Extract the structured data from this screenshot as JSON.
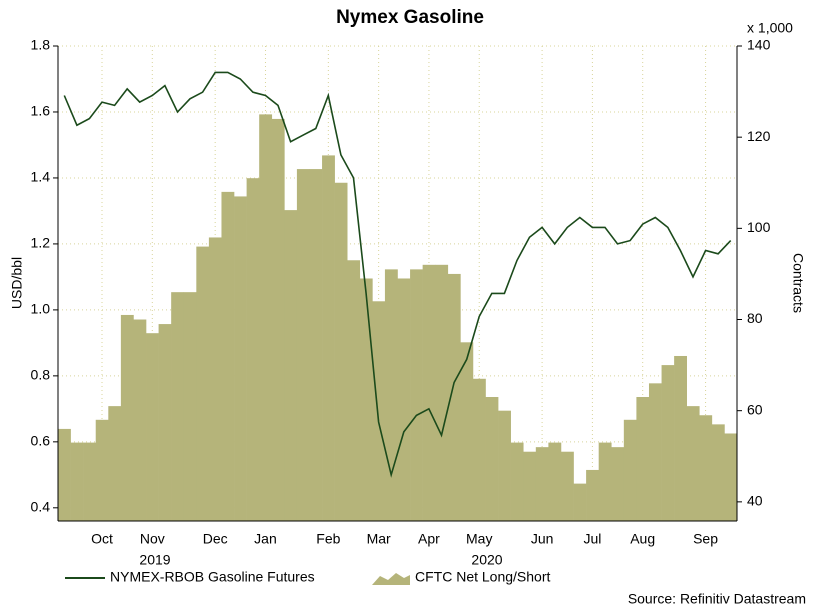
{
  "chart_data": {
    "type": "line-area",
    "title": "Nymex Gasoline",
    "y_label": "USD/bbl",
    "y2_label": "Contracts",
    "y2_unit_label": "x 1,000",
    "x_group_labels": [
      "2019",
      "2020"
    ],
    "source": "Source: Refinitiv Datastream",
    "categories": [
      null,
      null,
      null,
      "Oct",
      null,
      null,
      null,
      "Nov",
      null,
      null,
      null,
      null,
      "Dec",
      null,
      null,
      null,
      "Jan",
      null,
      null,
      null,
      null,
      "Feb",
      null,
      null,
      null,
      "Mar",
      null,
      null,
      null,
      "Apr",
      null,
      null,
      null,
      "May",
      null,
      null,
      null,
      null,
      "Jun",
      null,
      null,
      null,
      "Jul",
      null,
      null,
      null,
      "Aug",
      null,
      null,
      null,
      null,
      "Sep",
      null,
      null
    ],
    "series": [
      {
        "name": "NYMEX-RBOB Gasoline Futures",
        "type": "line",
        "color": "#1b4a1b",
        "values": [
          1.65,
          1.56,
          1.58,
          1.63,
          1.62,
          1.67,
          1.63,
          1.65,
          1.68,
          1.6,
          1.64,
          1.66,
          1.72,
          1.72,
          1.7,
          1.66,
          1.65,
          1.62,
          1.51,
          1.53,
          1.55,
          1.65,
          1.47,
          1.4,
          1.05,
          0.66,
          0.5,
          0.63,
          0.68,
          0.7,
          0.62,
          0.78,
          0.85,
          0.98,
          1.05,
          1.05,
          1.15,
          1.22,
          1.25,
          1.2,
          1.25,
          1.28,
          1.25,
          1.25,
          1.2,
          1.21,
          1.26,
          1.28,
          1.25,
          1.18,
          1.1,
          1.18,
          1.17,
          1.21
        ]
      },
      {
        "name": "CFTC Net Long/Short",
        "type": "area",
        "axis": "y2",
        "color": "#b5b47a",
        "values": [
          56,
          53,
          53,
          58,
          61,
          81,
          80,
          77,
          79,
          86,
          86,
          96,
          98,
          108,
          107,
          111,
          125,
          124,
          104,
          113,
          113,
          116,
          110,
          93,
          89,
          84,
          91,
          89,
          91,
          92,
          92,
          90,
          75,
          67,
          63,
          60,
          53,
          51,
          52,
          53,
          51,
          44,
          47,
          53,
          52,
          58,
          63,
          66,
          70,
          72,
          61,
          59,
          57,
          55
        ]
      }
    ],
    "ylim": [
      0.36,
      1.8
    ],
    "yticks": [
      0.4,
      0.6,
      0.8,
      {
        "value": 1,
        "label": "1.0"
      },
      1.2,
      1.4,
      1.6,
      1.8
    ],
    "y2lim": [
      35.8,
      140
    ],
    "y2ticks": [
      40,
      60,
      80,
      100,
      120,
      140
    ],
    "grid": true
  }
}
